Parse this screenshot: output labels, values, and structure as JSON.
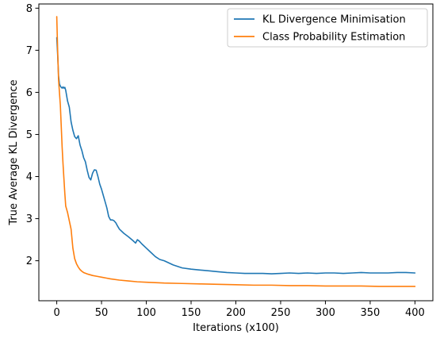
{
  "chart_data": {
    "type": "line",
    "title": "",
    "xlabel": "Iterations (x100)",
    "ylabel": "True Average KL Divergence",
    "xlim": [
      -20,
      420
    ],
    "ylim": [
      1.05,
      8.1
    ],
    "xticks": [
      0,
      50,
      100,
      150,
      200,
      250,
      300,
      350,
      400
    ],
    "yticks": [
      2,
      3,
      4,
      5,
      6,
      7,
      8
    ],
    "grid": false,
    "legend_position": "top-right",
    "series": [
      {
        "name": "KL Divergence Minimisation",
        "color": "#1f77b4",
        "x": [
          0,
          1,
          2,
          3,
          4,
          5,
          6,
          7,
          8,
          9,
          10,
          12,
          14,
          16,
          18,
          20,
          22,
          24,
          26,
          28,
          30,
          32,
          34,
          36,
          38,
          40,
          42,
          44,
          46,
          48,
          50,
          52,
          54,
          56,
          58,
          60,
          62,
          64,
          66,
          68,
          70,
          75,
          80,
          85,
          88,
          90,
          92,
          95,
          100,
          105,
          110,
          115,
          120,
          130,
          140,
          150,
          160,
          170,
          180,
          190,
          200,
          210,
          220,
          230,
          240,
          250,
          260,
          270,
          280,
          290,
          300,
          310,
          320,
          330,
          340,
          350,
          360,
          370,
          380,
          390,
          400
        ],
        "values": [
          7.3,
          6.9,
          6.4,
          6.2,
          6.15,
          6.12,
          6.1,
          6.13,
          6.1,
          6.12,
          6.05,
          5.8,
          5.65,
          5.3,
          5.1,
          4.95,
          4.9,
          4.97,
          4.75,
          4.62,
          4.45,
          4.35,
          4.15,
          3.98,
          3.92,
          4.08,
          4.16,
          4.15,
          4.0,
          3.82,
          3.7,
          3.55,
          3.4,
          3.25,
          3.05,
          2.97,
          2.97,
          2.95,
          2.9,
          2.82,
          2.75,
          2.65,
          2.57,
          2.48,
          2.42,
          2.5,
          2.47,
          2.4,
          2.3,
          2.2,
          2.1,
          2.03,
          2.0,
          1.9,
          1.83,
          1.8,
          1.78,
          1.76,
          1.74,
          1.72,
          1.71,
          1.7,
          1.7,
          1.7,
          1.69,
          1.7,
          1.71,
          1.7,
          1.71,
          1.7,
          1.71,
          1.71,
          1.7,
          1.71,
          1.72,
          1.71,
          1.71,
          1.71,
          1.72,
          1.72,
          1.71
        ]
      },
      {
        "name": "Class Probability Estimation",
        "color": "#ff7f0e",
        "x": [
          0,
          1,
          2,
          3,
          4,
          5,
          6,
          7,
          8,
          9,
          10,
          12,
          14,
          16,
          18,
          20,
          22,
          24,
          26,
          28,
          30,
          35,
          40,
          45,
          50,
          55,
          60,
          70,
          80,
          90,
          100,
          110,
          120,
          140,
          160,
          180,
          200,
          220,
          240,
          260,
          280,
          300,
          320,
          340,
          360,
          380,
          400
        ],
        "values": [
          7.8,
          7.0,
          6.3,
          6.0,
          5.7,
          5.2,
          4.7,
          4.3,
          3.95,
          3.6,
          3.3,
          3.15,
          2.95,
          2.75,
          2.3,
          2.05,
          1.93,
          1.85,
          1.79,
          1.75,
          1.72,
          1.68,
          1.65,
          1.63,
          1.61,
          1.59,
          1.57,
          1.54,
          1.52,
          1.5,
          1.49,
          1.48,
          1.47,
          1.46,
          1.45,
          1.44,
          1.43,
          1.42,
          1.42,
          1.41,
          1.41,
          1.4,
          1.4,
          1.4,
          1.39,
          1.39,
          1.39
        ]
      }
    ]
  }
}
